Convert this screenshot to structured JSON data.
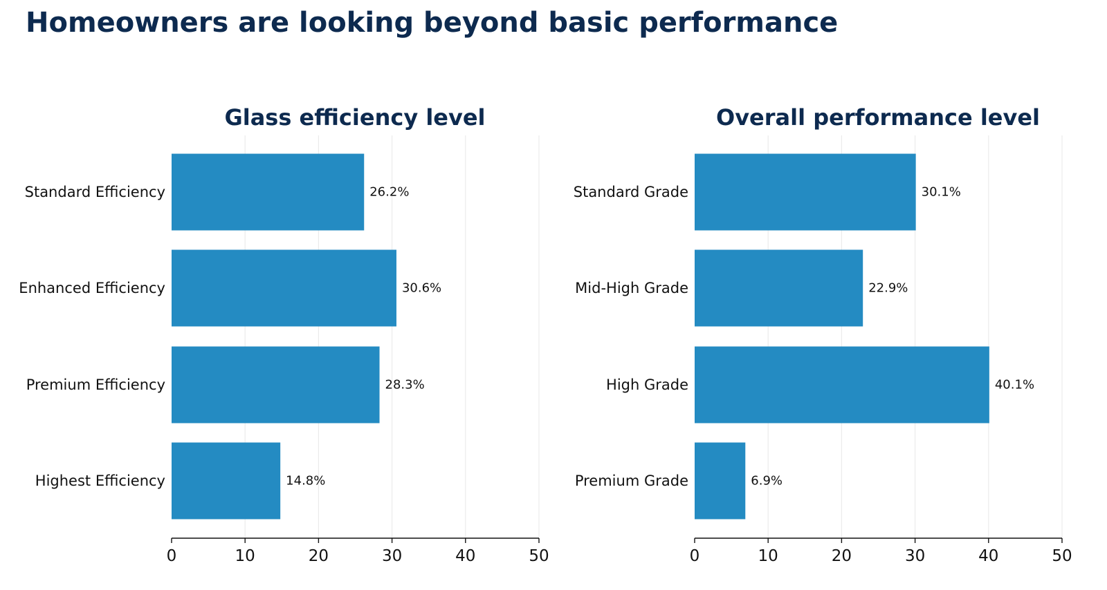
{
  "title": "Homeowners are looking beyond basic performance",
  "colors": {
    "bar": "#248bc2",
    "title": "#0d2a4f",
    "grid": "#ebebeb",
    "axis": "#111111"
  },
  "chart_data": [
    {
      "type": "bar",
      "orientation": "horizontal",
      "title": "Glass efficiency level",
      "categories": [
        "Standard Efficiency",
        "Enhanced Efficiency",
        "Premium Efficiency",
        "Highest Efficiency"
      ],
      "values": [
        26.2,
        30.6,
        28.3,
        14.8
      ],
      "data_labels": [
        "26.2%",
        "30.6%",
        "28.3%",
        "14.8%"
      ],
      "xlim": [
        0,
        50
      ],
      "xticks": [
        0,
        10,
        20,
        30,
        40,
        50
      ],
      "grid": true
    },
    {
      "type": "bar",
      "orientation": "horizontal",
      "title": "Overall performance level",
      "categories": [
        "Standard Grade",
        "Mid-High Grade",
        "High Grade",
        "Premium Grade"
      ],
      "values": [
        30.1,
        22.9,
        40.1,
        6.9
      ],
      "data_labels": [
        "30.1%",
        "22.9%",
        "40.1%",
        "6.9%"
      ],
      "xlim": [
        0,
        50
      ],
      "xticks": [
        0,
        10,
        20,
        30,
        40,
        50
      ],
      "grid": true
    }
  ]
}
